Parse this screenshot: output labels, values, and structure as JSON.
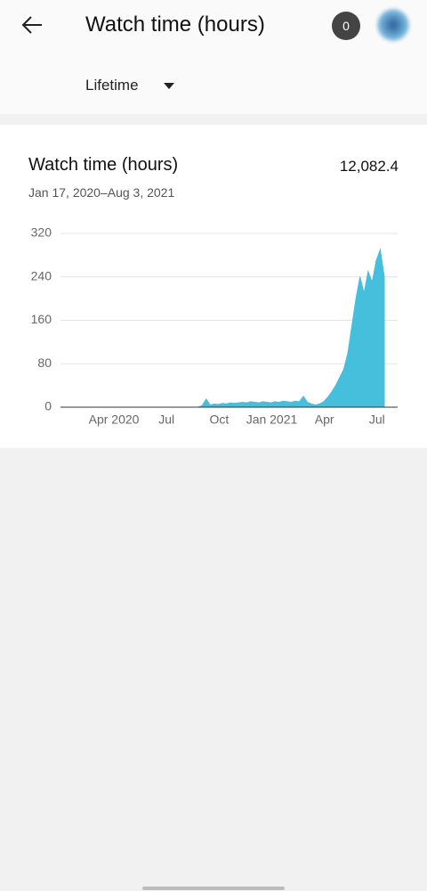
{
  "header": {
    "title": "Watch time (hours)",
    "badge": "0",
    "filter": "Lifetime"
  },
  "chart_data": {
    "type": "area",
    "title": "Watch time (hours)",
    "total": "12,082.4",
    "subtitle": "Jan 17, 2020–Aug 3, 2021",
    "color": "#46bfdc",
    "grid": true,
    "ylim": [
      0,
      320
    ],
    "yticks": [
      0,
      80,
      160,
      240,
      320
    ],
    "categories": [
      null,
      null,
      null,
      null,
      null,
      null,
      null,
      null,
      null,
      null,
      null,
      "Apr 2020",
      null,
      null,
      null,
      null,
      null,
      null,
      null,
      null,
      null,
      null,
      null,
      null,
      "Jul",
      null,
      null,
      null,
      null,
      null,
      null,
      null,
      null,
      null,
      null,
      null,
      null,
      "Oct",
      null,
      null,
      null,
      null,
      null,
      null,
      null,
      null,
      null,
      null,
      null,
      null,
      "Jan 2021",
      null,
      null,
      null,
      null,
      null,
      null,
      null,
      null,
      null,
      null,
      null,
      null,
      "Apr",
      null,
      null,
      null,
      null,
      null,
      null,
      null,
      null,
      null,
      null,
      null,
      null,
      "Jul",
      null,
      null,
      null,
      null
    ],
    "values": [
      0,
      0,
      0,
      0,
      0,
      0,
      0,
      0,
      0,
      0,
      0,
      0,
      0,
      0,
      0,
      0,
      0,
      0,
      0,
      0,
      0,
      0,
      0,
      0,
      0,
      0,
      0,
      0,
      0,
      0,
      0,
      0,
      0,
      0,
      0,
      3,
      15,
      4,
      6,
      5,
      7,
      6,
      8,
      7,
      8,
      9,
      8,
      10,
      9,
      8,
      10,
      9,
      8,
      10,
      9,
      11,
      10,
      9,
      11,
      10,
      20,
      9,
      6,
      4,
      6,
      10,
      18,
      28,
      40,
      55,
      70,
      100,
      150,
      200,
      240,
      210,
      250,
      230,
      270,
      290,
      240
    ]
  }
}
